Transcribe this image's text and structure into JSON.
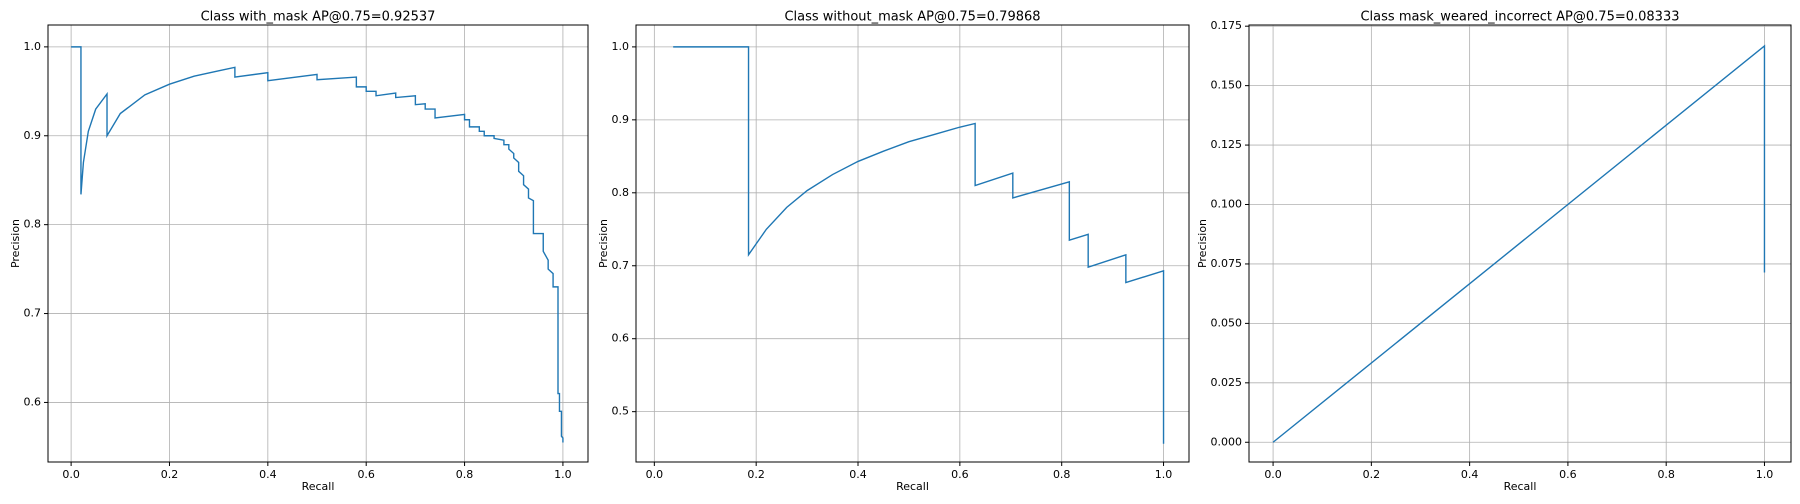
{
  "chart_data": [
    {
      "type": "line",
      "title": "Class with_mask AP@0.75=0.92537",
      "xlabel": "Recall",
      "ylabel": "Precision",
      "color": "#1f77b4",
      "grid": true,
      "xlim": [
        -0.047,
        1.051
      ],
      "ylim": [
        0.533,
        1.0246
      ],
      "xticks": [
        {
          "value": 0,
          "label": "0.0"
        },
        0.2,
        0.4,
        0.6,
        0.8,
        {
          "value": 1,
          "label": "1.0"
        }
      ],
      "yticks": [
        0.6,
        0.7,
        0.8,
        0.9,
        {
          "value": 1,
          "label": "1.0"
        }
      ],
      "x": [
        0.0,
        0.02,
        0.02,
        0.025,
        0.035,
        0.05,
        0.073,
        0.073,
        0.1,
        0.15,
        0.2,
        0.25,
        0.3,
        0.333,
        0.333,
        0.4,
        0.4,
        0.5,
        0.5,
        0.58,
        0.58,
        0.6,
        0.6,
        0.62,
        0.62,
        0.66,
        0.66,
        0.7,
        0.7,
        0.72,
        0.72,
        0.74,
        0.74,
        0.8,
        0.8,
        0.81,
        0.81,
        0.83,
        0.83,
        0.84,
        0.84,
        0.86,
        0.86,
        0.88,
        0.88,
        0.89,
        0.89,
        0.9,
        0.9,
        0.91,
        0.91,
        0.92,
        0.92,
        0.93,
        0.93,
        0.94,
        0.94,
        0.96,
        0.96,
        0.97,
        0.97,
        0.98,
        0.98,
        0.99,
        0.99,
        0.993,
        0.993,
        0.997,
        0.997,
        1.0,
        1.0
      ],
      "values": [
        1.0,
        1.0,
        0.834,
        0.87,
        0.905,
        0.93,
        0.947,
        0.9,
        0.925,
        0.946,
        0.958,
        0.967,
        0.973,
        0.977,
        0.966,
        0.971,
        0.962,
        0.969,
        0.963,
        0.966,
        0.955,
        0.955,
        0.95,
        0.95,
        0.945,
        0.948,
        0.943,
        0.945,
        0.935,
        0.936,
        0.93,
        0.93,
        0.92,
        0.924,
        0.918,
        0.918,
        0.91,
        0.91,
        0.905,
        0.905,
        0.9,
        0.9,
        0.897,
        0.895,
        0.89,
        0.89,
        0.885,
        0.88,
        0.875,
        0.87,
        0.86,
        0.855,
        0.845,
        0.84,
        0.83,
        0.827,
        0.79,
        0.79,
        0.77,
        0.76,
        0.75,
        0.745,
        0.73,
        0.73,
        0.61,
        0.61,
        0.59,
        0.59,
        0.562,
        0.56,
        0.555
      ]
    },
    {
      "type": "line",
      "title": "Class without_mask AP@0.75=0.79868",
      "xlabel": "Recall",
      "ylabel": "Precision",
      "color": "#1f77b4",
      "grid": true,
      "xlim": [
        -0.036,
        1.05
      ],
      "ylim": [
        0.431,
        1.03
      ],
      "xticks": [
        {
          "value": 0,
          "label": "0.0"
        },
        0.2,
        0.4,
        0.6,
        0.8,
        {
          "value": 1,
          "label": "1.0"
        }
      ],
      "yticks": [
        0.5,
        0.6,
        0.7,
        0.8,
        0.9,
        {
          "value": 1,
          "label": "1.0"
        }
      ],
      "x": [
        0.037,
        0.185,
        0.185,
        0.22,
        0.26,
        0.3,
        0.35,
        0.4,
        0.45,
        0.5,
        0.55,
        0.6,
        0.63,
        0.63,
        0.704,
        0.704,
        0.815,
        0.815,
        0.852,
        0.852,
        0.926,
        0.926,
        1.0,
        1.0
      ],
      "values": [
        1.0,
        1.0,
        0.715,
        0.75,
        0.78,
        0.803,
        0.825,
        0.843,
        0.857,
        0.87,
        0.88,
        0.89,
        0.895,
        0.81,
        0.827,
        0.793,
        0.815,
        0.735,
        0.743,
        0.698,
        0.715,
        0.677,
        0.693,
        0.456
      ]
    },
    {
      "type": "line",
      "title": "Class mask_weared_incorrect AP@0.75=0.08333",
      "xlabel": "Recall",
      "ylabel": "Precision",
      "color": "#1f77b4",
      "grid": true,
      "xlim": [
        -0.049,
        1.054
      ],
      "ylim": [
        -0.0083,
        0.1755
      ],
      "xticks": [
        {
          "value": 0,
          "label": "0.0"
        },
        0.2,
        0.4,
        0.6,
        0.8,
        {
          "value": 1,
          "label": "1.0"
        }
      ],
      "yticks": [
        {
          "value": 0,
          "label": "0.000"
        },
        0.025,
        {
          "value": 0.05,
          "label": "0.050"
        },
        0.075,
        {
          "value": 0.1,
          "label": "0.100"
        },
        0.125,
        {
          "value": 0.15,
          "label": "0.150"
        },
        0.175
      ],
      "x": [
        0.0,
        1.0,
        1.0
      ],
      "values": [
        0.0,
        0.1667,
        0.0714
      ]
    }
  ]
}
